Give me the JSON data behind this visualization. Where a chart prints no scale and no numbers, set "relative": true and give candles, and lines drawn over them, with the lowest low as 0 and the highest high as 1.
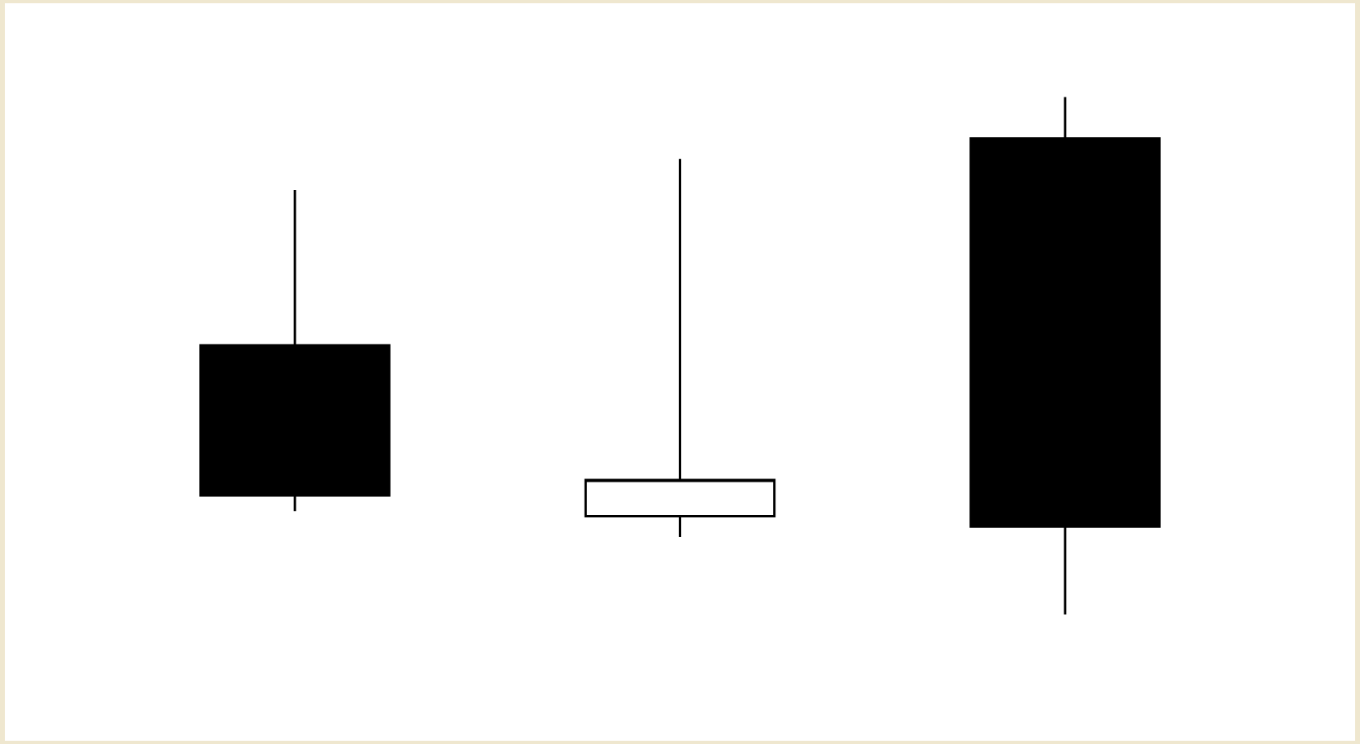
{
  "chart_data": {
    "type": "candlestick",
    "relative": true,
    "categories": [
      null,
      null,
      null
    ],
    "ohlc": [
      [
        0.52,
        0.82,
        0.2,
        0.23
      ],
      [
        0.19,
        0.88,
        0.15,
        0.26
      ],
      [
        0.92,
        1,
        0,
        0.17
      ]
    ],
    "colors": [
      "#000000",
      "#ffffff",
      "#000000"
    ]
  }
}
